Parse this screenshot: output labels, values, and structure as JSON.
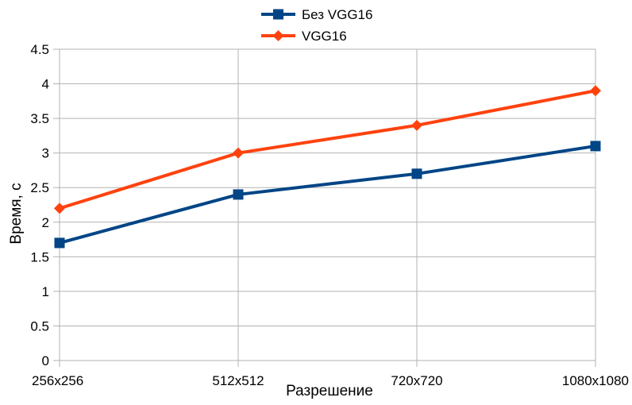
{
  "chart_data": {
    "type": "line",
    "categories": [
      "256x256",
      "512x512",
      "720x720",
      "1080x1080"
    ],
    "series": [
      {
        "name": "Без VGG16",
        "values": [
          1.7,
          2.4,
          2.7,
          3.1
        ],
        "color": "#004586",
        "marker": "square"
      },
      {
        "name": "VGG16",
        "values": [
          2.2,
          3.0,
          3.4,
          3.9
        ],
        "color": "#ff420e",
        "marker": "diamond"
      }
    ],
    "title": "",
    "xlabel": "Разрешение",
    "ylabel": "Время, с",
    "ylim": [
      0,
      4.5
    ],
    "ytick_labels": [
      "0",
      "0.5",
      "1",
      "1.5",
      "2",
      "2.5",
      "3",
      "3.5",
      "4",
      "4.5"
    ],
    "grid": "horizontal",
    "legend_position": "top-center"
  }
}
